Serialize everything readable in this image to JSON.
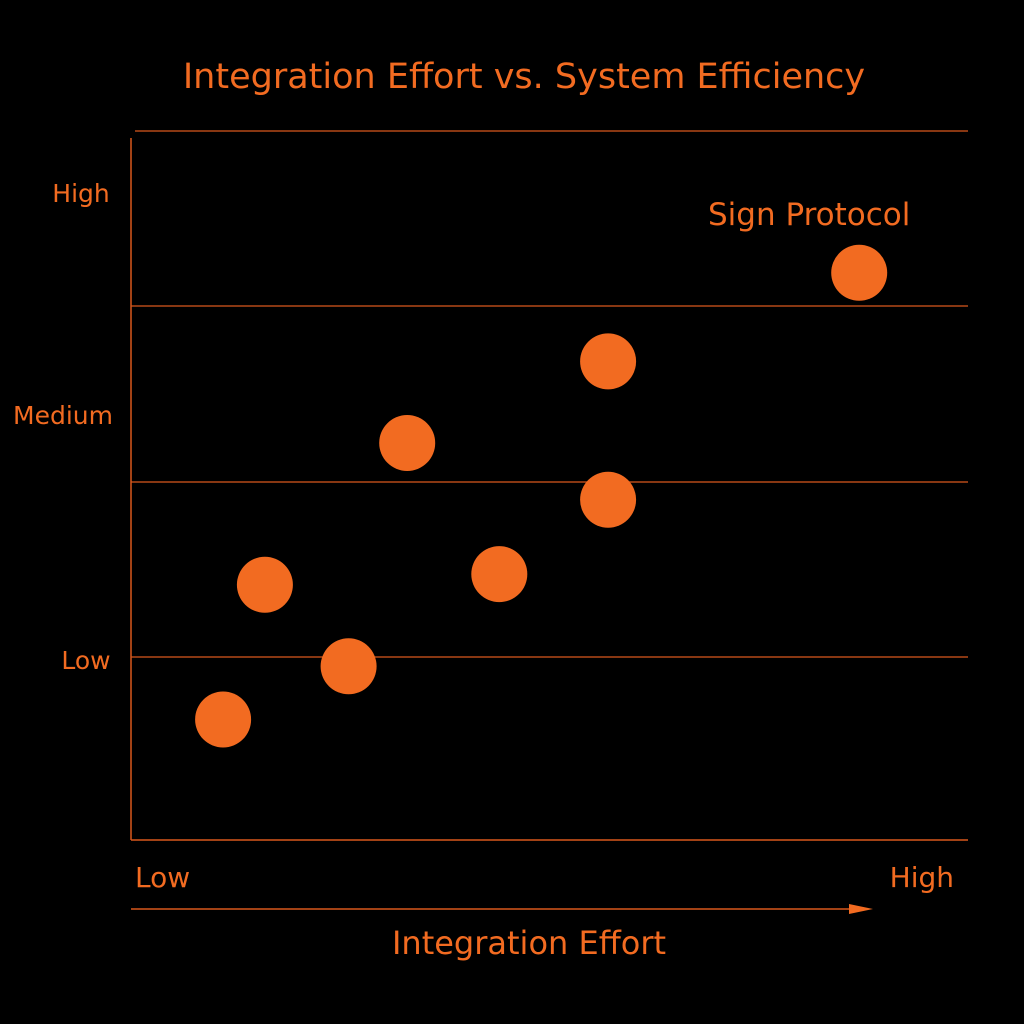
{
  "chart_data": {
    "type": "scatter",
    "title": "Integration Effort vs. System Efficiency",
    "xlabel": "Integration Effort",
    "ylabel": "",
    "x_tick_labels": {
      "low": "Low",
      "high": "High"
    },
    "y_tick_labels": [
      "Low",
      "Medium",
      "High"
    ],
    "xlim": [
      0,
      1
    ],
    "ylim": [
      0,
      1
    ],
    "grid": true,
    "points": [
      {
        "x": 0.11,
        "y": 0.17,
        "label": ""
      },
      {
        "x": 0.16,
        "y": 0.36,
        "label": ""
      },
      {
        "x": 0.26,
        "y": 0.245,
        "label": ""
      },
      {
        "x": 0.33,
        "y": 0.56,
        "label": ""
      },
      {
        "x": 0.44,
        "y": 0.375,
        "label": ""
      },
      {
        "x": 0.57,
        "y": 0.48,
        "label": ""
      },
      {
        "x": 0.57,
        "y": 0.675,
        "label": ""
      },
      {
        "x": 0.87,
        "y": 0.8,
        "label": "Sign Protocol"
      }
    ],
    "colors": {
      "accent": "#f26b21",
      "background": "#000000"
    }
  }
}
